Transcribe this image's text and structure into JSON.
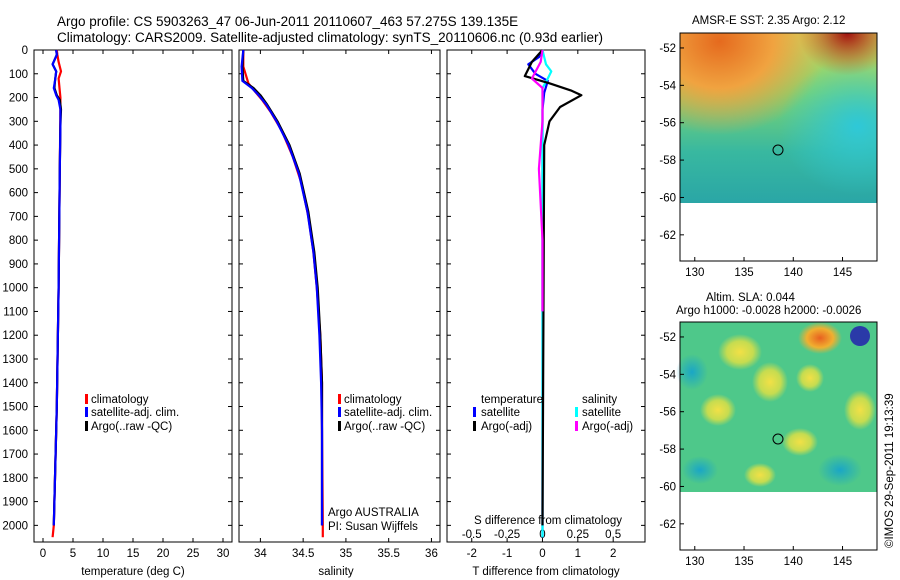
{
  "header": {
    "line1": "Argo profile: CS 5903263_47 06-Jun-2011 20110607_463 57.275S 139.135E",
    "line2": "Climatology: CARS2009. Satellite-adjusted climatology: synTS_20110606.nc (0.93d earlier)"
  },
  "chart_data": [
    {
      "type": "line",
      "xlabel": "temperature (deg C)",
      "ylabel": "",
      "xlim": [
        -1.5,
        31.5
      ],
      "ylim": [
        2070,
        0
      ],
      "xticks": [
        "0",
        "5",
        "10",
        "15",
        "20",
        "25",
        "30"
      ],
      "yticks": [
        "0",
        "100",
        "200",
        "300",
        "400",
        "500",
        "600",
        "700",
        "800",
        "900",
        "1000",
        "1100",
        "1200",
        "1300",
        "1400",
        "1500",
        "1600",
        "1700",
        "1800",
        "1900",
        "2000"
      ],
      "legend": [
        "climatology",
        "satellite-adj. clim.",
        "Argo(..raw -QC)"
      ],
      "series": [
        {
          "name": "climatology",
          "color": "#ff0000",
          "points": [
            [
              2.3,
              0
            ],
            [
              2.4,
              20
            ],
            [
              2.6,
              50
            ],
            [
              3.0,
              90
            ],
            [
              2.6,
              120
            ],
            [
              2.9,
              200
            ],
            [
              2.9,
              250
            ],
            [
              2.8,
              500
            ],
            [
              2.6,
              1000
            ],
            [
              2.3,
              1500
            ],
            [
              2.0,
              1800
            ],
            [
              1.8,
              2000
            ],
            [
              1.6,
              2050
            ]
          ]
        },
        {
          "name": "Argo(..raw -QC)",
          "color": "#000000",
          "points": [
            [
              2.2,
              0
            ],
            [
              2.3,
              20
            ],
            [
              1.6,
              60
            ],
            [
              2.2,
              90
            ],
            [
              2.0,
              130
            ],
            [
              1.9,
              160
            ],
            [
              2.3,
              190
            ],
            [
              2.8,
              210
            ],
            [
              3.0,
              250
            ],
            [
              2.9,
              320
            ],
            [
              2.8,
              500
            ],
            [
              2.6,
              1000
            ],
            [
              2.3,
              1500
            ],
            [
              2.0,
              1800
            ],
            [
              1.8,
              2000
            ]
          ]
        },
        {
          "name": "satellite-adj. clim.",
          "color": "#0000ff",
          "points": [
            [
              2.2,
              0
            ],
            [
              2.3,
              20
            ],
            [
              1.6,
              60
            ],
            [
              2.2,
              90
            ],
            [
              2.0,
              130
            ],
            [
              1.8,
              160
            ],
            [
              2.2,
              190
            ],
            [
              2.6,
              210
            ],
            [
              2.9,
              250
            ],
            [
              2.9,
              320
            ],
            [
              2.8,
              500
            ],
            [
              2.6,
              1000
            ],
            [
              2.3,
              1500
            ],
            [
              2.0,
              1800
            ],
            [
              1.8,
              2000
            ]
          ]
        }
      ]
    },
    {
      "type": "line",
      "xlabel": "salinity",
      "xlim": [
        33.75,
        36.1
      ],
      "ylim": [
        2070,
        0
      ],
      "xticks": [
        "34",
        "34.5",
        "35",
        "35.5",
        "36"
      ],
      "legend": [
        "climatology",
        "satellite-adj. clim.",
        "Argo(..raw -QC)"
      ],
      "annotation": [
        "Argo AUSTRALIA",
        "PI: Susan Wijffels"
      ],
      "series": [
        {
          "name": "climatology",
          "color": "#ff0000",
          "points": [
            [
              33.8,
              0
            ],
            [
              33.8,
              70
            ],
            [
              33.86,
              140
            ],
            [
              33.95,
              180
            ],
            [
              34.02,
              210
            ],
            [
              34.12,
              260
            ],
            [
              34.25,
              340
            ],
            [
              34.38,
              450
            ],
            [
              34.48,
              560
            ],
            [
              34.56,
              700
            ],
            [
              34.62,
              850
            ],
            [
              34.66,
              1000
            ],
            [
              34.7,
              1200
            ],
            [
              34.72,
              1400
            ],
            [
              34.72,
              1600
            ],
            [
              34.73,
              2000
            ],
            [
              34.73,
              2050
            ]
          ]
        },
        {
          "name": "Argo(..raw -QC)",
          "color": "#000000",
          "points": [
            [
              33.8,
              0
            ],
            [
              33.79,
              70
            ],
            [
              33.8,
              130
            ],
            [
              33.92,
              160
            ],
            [
              34.0,
              190
            ],
            [
              34.08,
              230
            ],
            [
              34.2,
              300
            ],
            [
              34.34,
              400
            ],
            [
              34.46,
              520
            ],
            [
              34.56,
              680
            ],
            [
              34.63,
              850
            ],
            [
              34.67,
              1000
            ],
            [
              34.7,
              1200
            ],
            [
              34.72,
              1400
            ],
            [
              34.72,
              1600
            ],
            [
              34.72,
              2000
            ]
          ]
        },
        {
          "name": "satellite-adj. clim.",
          "color": "#0000ff",
          "points": [
            [
              33.8,
              0
            ],
            [
              33.78,
              70
            ],
            [
              33.79,
              130
            ],
            [
              33.9,
              160
            ],
            [
              33.98,
              190
            ],
            [
              34.07,
              230
            ],
            [
              34.19,
              300
            ],
            [
              34.33,
              400
            ],
            [
              34.45,
              520
            ],
            [
              34.55,
              680
            ],
            [
              34.62,
              850
            ],
            [
              34.66,
              1000
            ],
            [
              34.69,
              1200
            ],
            [
              34.71,
              1400
            ],
            [
              34.72,
              1600
            ],
            [
              34.72,
              2000
            ]
          ]
        }
      ]
    },
    {
      "type": "line",
      "xlabel": "T difference from climatology",
      "xlabel_top": "S difference from climatology",
      "xlim": [
        -2.7,
        2.9
      ],
      "ylim": [
        2070,
        0
      ],
      "xticks": [
        "-2",
        "-1",
        "0",
        "1",
        "2"
      ],
      "xticks_top": [
        "-0.5",
        "-0.25",
        "0",
        "0.25",
        "0.5"
      ],
      "legend_headers": [
        "temperature",
        "salinity"
      ],
      "legend": [
        "satellite",
        "Argo(-adj)",
        "satellite",
        "Argo(-adj)"
      ],
      "series": [
        {
          "name": "satellite",
          "group": "temperature",
          "color": "#0000ff",
          "points": [
            [
              0,
              0
            ],
            [
              -0.1,
              30
            ],
            [
              -0.4,
              60
            ],
            [
              -0.2,
              100
            ],
            [
              0.15,
              130
            ],
            [
              0.05,
              180
            ],
            [
              0.0,
              250
            ],
            [
              0.0,
              400
            ],
            [
              0.0,
              1000
            ],
            [
              0.0,
              2000
            ],
            [
              0.0,
              2050
            ]
          ]
        },
        {
          "name": "satellite",
          "group": "salinity",
          "color": "#00ffff",
          "points": [
            [
              0,
              0
            ],
            [
              0.05,
              30
            ],
            [
              0.1,
              60
            ],
            [
              0.25,
              90
            ],
            [
              0.15,
              120
            ],
            [
              0.0,
              160
            ],
            [
              0.0,
              300
            ],
            [
              0.0,
              2050
            ]
          ]
        },
        {
          "name": "Argo(-adj)",
          "group": "temperature",
          "color": "#000000",
          "points": [
            [
              0,
              0
            ],
            [
              -0.3,
              50
            ],
            [
              -0.5,
              110
            ],
            [
              0.2,
              140
            ],
            [
              0.8,
              170
            ],
            [
              1.1,
              190
            ],
            [
              0.5,
              240
            ],
            [
              0.2,
              300
            ],
            [
              0.05,
              400
            ],
            [
              0.0,
              2000
            ]
          ]
        },
        {
          "name": "Argo(-adj)",
          "group": "salinity",
          "color": "#ff00ff",
          "points": [
            [
              0,
              0
            ],
            [
              -0.05,
              50
            ],
            [
              -0.3,
              120
            ],
            [
              0.0,
              160
            ],
            [
              0.0,
              300
            ],
            [
              -0.1,
              500
            ],
            [
              0.0,
              800
            ],
            [
              0.0,
              1100
            ]
          ]
        }
      ]
    }
  ],
  "maps": [
    {
      "title": "AMSR-E SST: 2.35 Argo: 2.12",
      "xticks": [
        "130",
        "135",
        "140",
        "145"
      ],
      "yticks": [
        "-52",
        "-54",
        "-56",
        "-58",
        "-60",
        "-62"
      ],
      "marker": {
        "lon": 139.1,
        "lat": -57.3
      }
    },
    {
      "title_line1": "Altim. SLA: 0.044",
      "title_line2": "Argo h1000: -0.0028 h2000: -0.0026",
      "xticks": [
        "130",
        "135",
        "140",
        "145"
      ],
      "yticks": [
        "-52",
        "-54",
        "-56",
        "-58",
        "-60",
        "-62"
      ],
      "marker": {
        "lon": 139.1,
        "lat": -57.3
      }
    }
  ],
  "credit": "©IMOS 29-Sep-2011 19:13:39"
}
